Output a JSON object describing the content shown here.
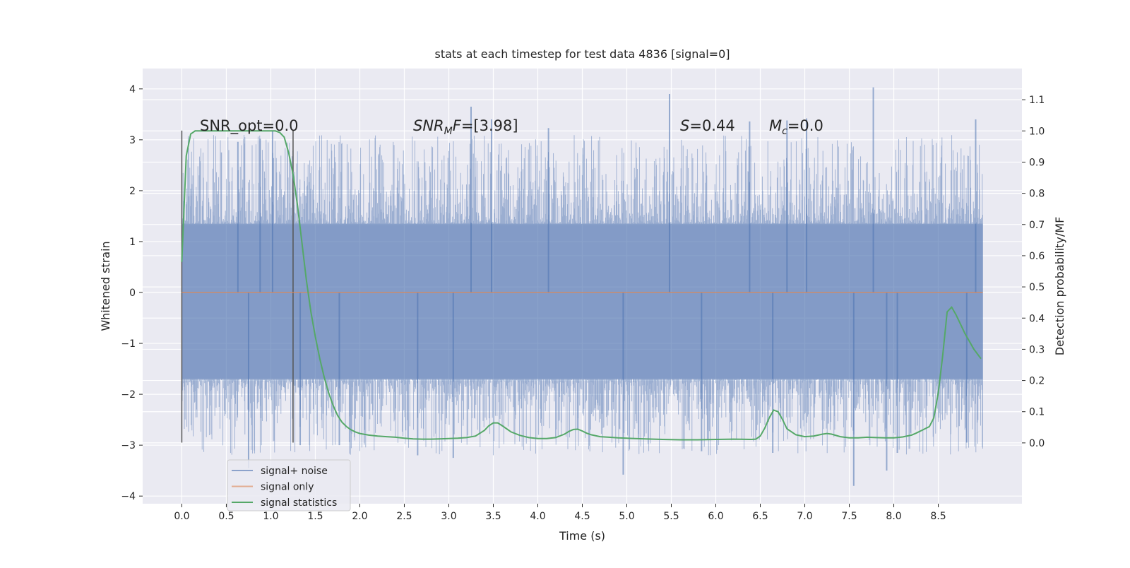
{
  "chart_data": {
    "type": "line",
    "title": "stats at each timestep for test data 4836 [signal=0]",
    "xlabel": "Time (s)",
    "ylabel": "Whitened strain",
    "y2label": "Detection probability/MF",
    "xlim": [
      -0.44,
      9.44
    ],
    "ylim": [
      -4.15,
      4.4
    ],
    "y2lim": [
      -0.195,
      1.2
    ],
    "x_ticks": [
      0.0,
      0.5,
      1.0,
      1.5,
      2.0,
      2.5,
      3.0,
      3.5,
      4.0,
      4.5,
      5.0,
      5.5,
      6.0,
      6.5,
      7.0,
      7.5,
      8.0,
      8.5
    ],
    "x_tick_labels": [
      "0.0",
      "0.5",
      "1.0",
      "1.5",
      "2.0",
      "2.5",
      "3.0",
      "3.5",
      "4.0",
      "4.5",
      "5.0",
      "5.5",
      "6.0",
      "6.5",
      "7.0",
      "7.5",
      "8.0",
      "8.5"
    ],
    "y_ticks": [
      -4,
      -3,
      -2,
      -1,
      0,
      1,
      2,
      3,
      4
    ],
    "y_tick_labels": [
      "−4",
      "−3",
      "−2",
      "−1",
      "0",
      "1",
      "2",
      "3",
      "4"
    ],
    "y2_ticks": [
      0.0,
      0.1,
      0.2,
      0.3,
      0.4,
      0.5,
      0.6,
      0.7,
      0.8,
      0.9,
      1.0,
      1.1
    ],
    "y2_tick_labels": [
      "0.0",
      "0.1",
      "0.2",
      "0.3",
      "0.4",
      "0.5",
      "0.6",
      "0.7",
      "0.8",
      "0.9",
      "1.0",
      "1.1"
    ],
    "grid": true,
    "legend_position": "lower-left",
    "legend": [
      {
        "label": "signal+ noise",
        "color": "#4c72b0"
      },
      {
        "label": "signal only",
        "color": "#dd8452"
      },
      {
        "label": "signal statistics",
        "color": "#55a868"
      }
    ],
    "annotations": {
      "snr_opt": "SNR_opt=0.0",
      "snr_mf_base": "SNR",
      "snr_mf_sub": "M",
      "snr_mf_rest": "F=[3.98]",
      "s_var": "S",
      "s_rest": "=0.44",
      "mc_var": "M",
      "mc_sub": "c",
      "mc_rest": "=0.0"
    },
    "noise_series": {
      "name": "signal+ noise",
      "color": "#4c72b0",
      "x_range": [
        0.0,
        9.0
      ],
      "band_typical": [
        -1.7,
        1.35
      ],
      "y_extremes": [
        -3.8,
        4.03
      ],
      "spikes": [
        {
          "x": 0.63,
          "y": 2.96
        },
        {
          "x": 0.88,
          "y": 3.02
        },
        {
          "x": 1.02,
          "y": 3.18
        },
        {
          "x": 3.25,
          "y": 3.65
        },
        {
          "x": 3.48,
          "y": 3.4
        },
        {
          "x": 4.12,
          "y": 3.23
        },
        {
          "x": 5.48,
          "y": 3.9
        },
        {
          "x": 6.38,
          "y": 3.36
        },
        {
          "x": 6.8,
          "y": 3.38
        },
        {
          "x": 7.02,
          "y": 3.42
        },
        {
          "x": 7.77,
          "y": 4.03
        },
        {
          "x": 8.92,
          "y": 3.4
        },
        {
          "x": 0.75,
          "y": -3.45
        },
        {
          "x": 1.33,
          "y": -3.0
        },
        {
          "x": 1.77,
          "y": -3.0
        },
        {
          "x": 2.65,
          "y": -3.2
        },
        {
          "x": 3.05,
          "y": -3.25
        },
        {
          "x": 4.96,
          "y": -3.58
        },
        {
          "x": 5.84,
          "y": -3.12
        },
        {
          "x": 6.64,
          "y": -3.15
        },
        {
          "x": 7.55,
          "y": -3.8
        },
        {
          "x": 7.92,
          "y": -3.5
        },
        {
          "x": 8.04,
          "y": -3.15
        },
        {
          "x": 8.82,
          "y": -2.95
        }
      ]
    },
    "signal_only": {
      "name": "signal only",
      "color": "#dd8452",
      "x": [
        0.0,
        9.0
      ],
      "y": [
        0.0,
        0.0
      ]
    },
    "signal_statistics": {
      "name": "signal statistics",
      "color": "#55a868",
      "x": [
        0.0,
        0.05,
        0.1,
        0.15,
        0.2,
        0.25,
        0.3,
        0.4,
        0.5,
        0.6,
        0.7,
        0.8,
        0.9,
        1.0,
        1.05,
        1.1,
        1.15,
        1.2,
        1.25,
        1.3,
        1.35,
        1.4,
        1.45,
        1.5,
        1.55,
        1.6,
        1.65,
        1.7,
        1.75,
        1.8,
        1.85,
        1.9,
        1.95,
        2.0,
        2.1,
        2.2,
        2.3,
        2.4,
        2.5,
        2.6,
        2.7,
        2.8,
        2.9,
        3.0,
        3.1,
        3.2,
        3.3,
        3.4,
        3.45,
        3.5,
        3.55,
        3.6,
        3.65,
        3.7,
        3.8,
        3.9,
        4.0,
        4.1,
        4.2,
        4.3,
        4.35,
        4.4,
        4.45,
        4.5,
        4.55,
        4.6,
        4.7,
        4.8,
        4.9,
        5.0,
        5.2,
        5.4,
        5.6,
        5.8,
        6.0,
        6.2,
        6.4,
        6.45,
        6.5,
        6.55,
        6.6,
        6.65,
        6.7,
        6.75,
        6.8,
        6.9,
        7.0,
        7.1,
        7.2,
        7.25,
        7.3,
        7.4,
        7.5,
        7.6,
        7.7,
        7.8,
        7.9,
        8.0,
        8.1,
        8.2,
        8.25,
        8.3,
        8.35,
        8.4,
        8.45,
        8.5,
        8.55,
        8.6,
        8.65,
        8.7,
        8.75,
        8.8,
        8.9,
        8.98
      ],
      "y": [
        0.58,
        0.92,
        0.99,
        1.0,
        1.0,
        1.0,
        1.0,
        1.0,
        1.0,
        1.0,
        1.0,
        1.0,
        1.0,
        1.0,
        1.0,
        0.995,
        0.98,
        0.93,
        0.86,
        0.76,
        0.64,
        0.52,
        0.42,
        0.34,
        0.27,
        0.21,
        0.16,
        0.12,
        0.088,
        0.066,
        0.052,
        0.042,
        0.035,
        0.03,
        0.025,
        0.022,
        0.02,
        0.018,
        0.015,
        0.013,
        0.012,
        0.012,
        0.013,
        0.014,
        0.015,
        0.017,
        0.022,
        0.04,
        0.055,
        0.064,
        0.064,
        0.055,
        0.045,
        0.035,
        0.024,
        0.017,
        0.014,
        0.014,
        0.017,
        0.028,
        0.037,
        0.043,
        0.044,
        0.038,
        0.031,
        0.026,
        0.02,
        0.018,
        0.016,
        0.015,
        0.013,
        0.011,
        0.01,
        0.01,
        0.011,
        0.012,
        0.011,
        0.012,
        0.022,
        0.047,
        0.08,
        0.105,
        0.1,
        0.075,
        0.045,
        0.026,
        0.02,
        0.022,
        0.028,
        0.03,
        0.028,
        0.02,
        0.016,
        0.016,
        0.018,
        0.017,
        0.016,
        0.016,
        0.019,
        0.025,
        0.031,
        0.038,
        0.045,
        0.052,
        0.08,
        0.16,
        0.28,
        0.42,
        0.435,
        0.41,
        0.38,
        0.35,
        0.3,
        0.27
      ]
    },
    "vertical_markers": [
      0.0,
      1.25
    ],
    "marker_y_span": [
      -2.95,
      3.18
    ]
  }
}
